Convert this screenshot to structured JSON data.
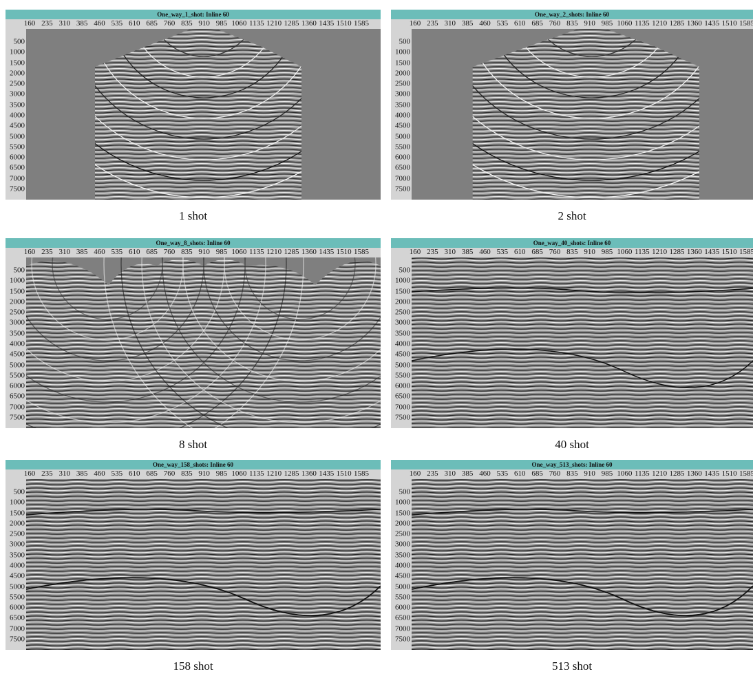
{
  "panels": [
    {
      "title": "One_way_1_shot: Inline 60",
      "caption": "1 shot",
      "x_ticks": [
        160,
        235,
        310,
        385,
        460,
        535,
        610,
        685,
        760,
        835,
        910,
        985,
        1060,
        1135,
        1210,
        1285,
        1360,
        1435,
        1510,
        1585
      ],
      "y_ticks": [
        500,
        1000,
        1500,
        2000,
        2500,
        3000,
        3500,
        4000,
        4500,
        5000,
        5500,
        6000,
        6500,
        7000,
        7500
      ]
    },
    {
      "title": "One_way_2_shots: Inline 60",
      "caption": "2 shot",
      "x_ticks": [
        160,
        235,
        310,
        385,
        460,
        535,
        610,
        685,
        760,
        835,
        910,
        985,
        1060,
        1135,
        1210,
        1285,
        1360,
        1435,
        1510,
        1585
      ],
      "y_ticks": [
        500,
        1000,
        1500,
        2000,
        2500,
        3000,
        3500,
        4000,
        4500,
        5000,
        5500,
        6000,
        6500,
        7000,
        7500
      ]
    },
    {
      "title": "One_way_8_shots: Inline 60",
      "caption": "8 shot",
      "x_ticks": [
        160,
        235,
        310,
        385,
        460,
        535,
        610,
        685,
        760,
        835,
        910,
        985,
        1060,
        1135,
        1210,
        1285,
        1360,
        1435,
        1510,
        1585
      ],
      "y_ticks": [
        500,
        1000,
        1500,
        2000,
        2500,
        3000,
        3500,
        4000,
        4500,
        5000,
        5500,
        6000,
        6500,
        7000,
        7500
      ]
    },
    {
      "title": "One_way_40_shots: Inline 60",
      "caption": "40 shot",
      "x_ticks": [
        160,
        235,
        310,
        385,
        460,
        535,
        610,
        685,
        760,
        835,
        910,
        985,
        1060,
        1135,
        1210,
        1285,
        1360,
        1435,
        1510,
        1585
      ],
      "y_ticks": [
        500,
        1000,
        1500,
        2000,
        2500,
        3000,
        3500,
        4000,
        4500,
        5000,
        5500,
        6000,
        6500,
        7000,
        7500
      ]
    },
    {
      "title": "One_way_158_shots: Inline 60",
      "caption": "158 shot",
      "x_ticks": [
        160,
        235,
        310,
        385,
        460,
        535,
        610,
        685,
        760,
        835,
        910,
        985,
        1060,
        1135,
        1210,
        1285,
        1360,
        1435,
        1510,
        1585
      ],
      "y_ticks": [
        500,
        1000,
        1500,
        2000,
        2500,
        3000,
        3500,
        4000,
        4500,
        5000,
        5500,
        6000,
        6500,
        7000,
        7500
      ]
    },
    {
      "title": "One_way_513_shots: Inline 60",
      "caption": "513 shot",
      "x_ticks": [
        160,
        235,
        310,
        385,
        460,
        535,
        610,
        685,
        760,
        835,
        910,
        985,
        1060,
        1135,
        1210,
        1285,
        1360,
        1435,
        1510,
        1585
      ],
      "y_ticks": [
        500,
        1000,
        1500,
        2000,
        2500,
        3000,
        3500,
        4000,
        4500,
        5000,
        5500,
        6000,
        6500,
        7000,
        7500
      ]
    }
  ]
}
